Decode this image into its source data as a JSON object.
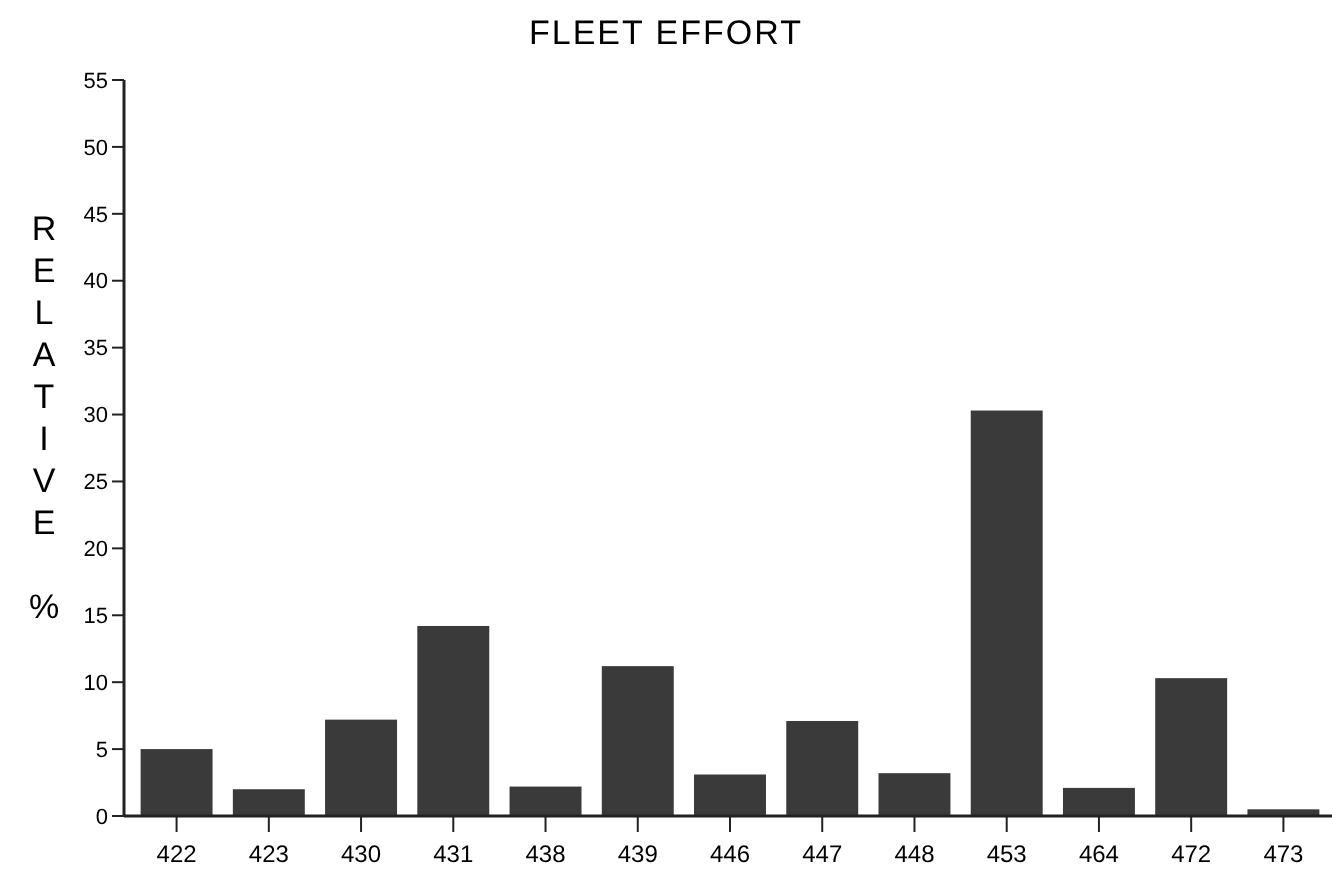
{
  "chart_data": {
    "type": "bar",
    "title": "FLEET EFFORT",
    "ylabel": "RELATIVE %",
    "categories": [
      "422",
      "423",
      "430",
      "431",
      "438",
      "439",
      "446",
      "447",
      "448",
      "453",
      "464",
      "472",
      "473"
    ],
    "values": [
      5,
      2,
      7.2,
      14.2,
      2.2,
      11.2,
      3.1,
      7.1,
      3.2,
      30.3,
      2.1,
      10.3,
      0.5
    ],
    "color": "#3a3a3a",
    "ylim": [
      0,
      55
    ],
    "yticks": [
      0,
      5,
      10,
      15,
      20,
      25,
      30,
      35,
      40,
      45,
      50,
      55
    ],
    "grid": false
  }
}
